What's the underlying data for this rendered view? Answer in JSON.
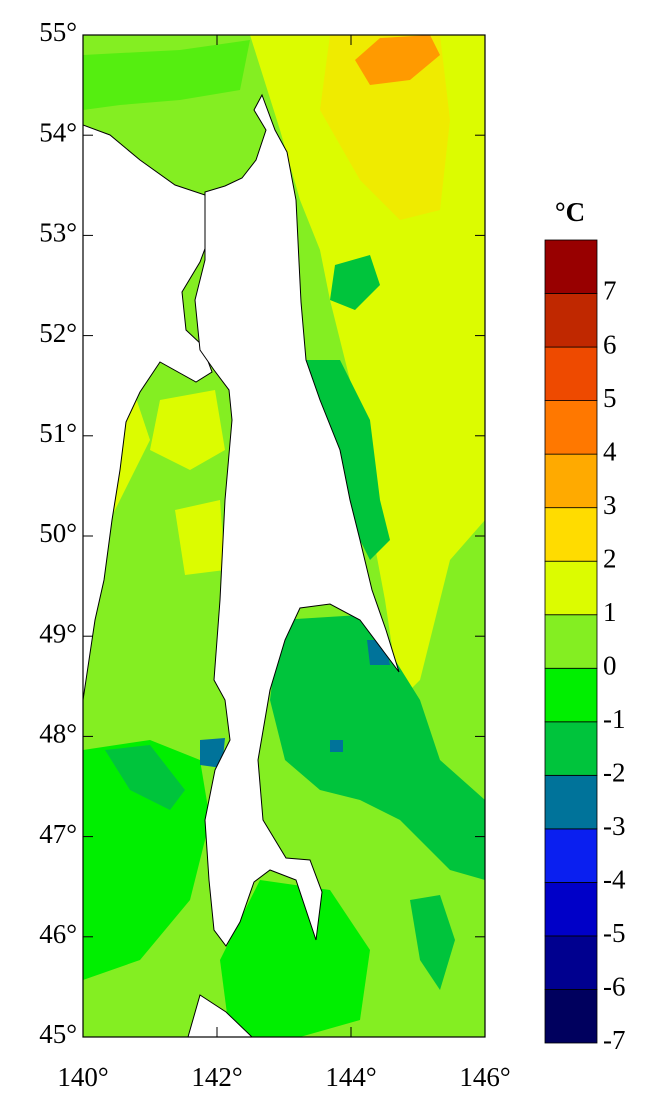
{
  "map": {
    "lat_ticks": [
      {
        "value": 45,
        "label": "45°"
      },
      {
        "value": 46,
        "label": "46°"
      },
      {
        "value": 47,
        "label": "47°"
      },
      {
        "value": 48,
        "label": "48°"
      },
      {
        "value": 49,
        "label": "49°"
      },
      {
        "value": 50,
        "label": "50°"
      },
      {
        "value": 51,
        "label": "51°"
      },
      {
        "value": 52,
        "label": "52°"
      },
      {
        "value": 53,
        "label": "53°"
      },
      {
        "value": 54,
        "label": "54°"
      },
      {
        "value": 55,
        "label": "55°"
      }
    ],
    "lon_ticks": [
      {
        "value": 140,
        "label": "140°"
      },
      {
        "value": 142,
        "label": "142°"
      },
      {
        "value": 144,
        "label": "144°"
      },
      {
        "value": 146,
        "label": "146°"
      }
    ],
    "colorbar": {
      "unit": "°C",
      "levels": [
        -7,
        -6,
        -5,
        -4,
        -3,
        -2,
        -1,
        0,
        1,
        2,
        3,
        4,
        5,
        6,
        7
      ],
      "colors": [
        "#00005e",
        "#00008f",
        "#0000c8",
        "#0a1ff0",
        "#00739a",
        "#00c43c",
        "#00ef00",
        "#84ee22",
        "#dcfc00",
        "#ffdc00",
        "#ffaa00",
        "#ff7800",
        "#ee4a00",
        "#c02800",
        "#980000"
      ]
    }
  }
}
